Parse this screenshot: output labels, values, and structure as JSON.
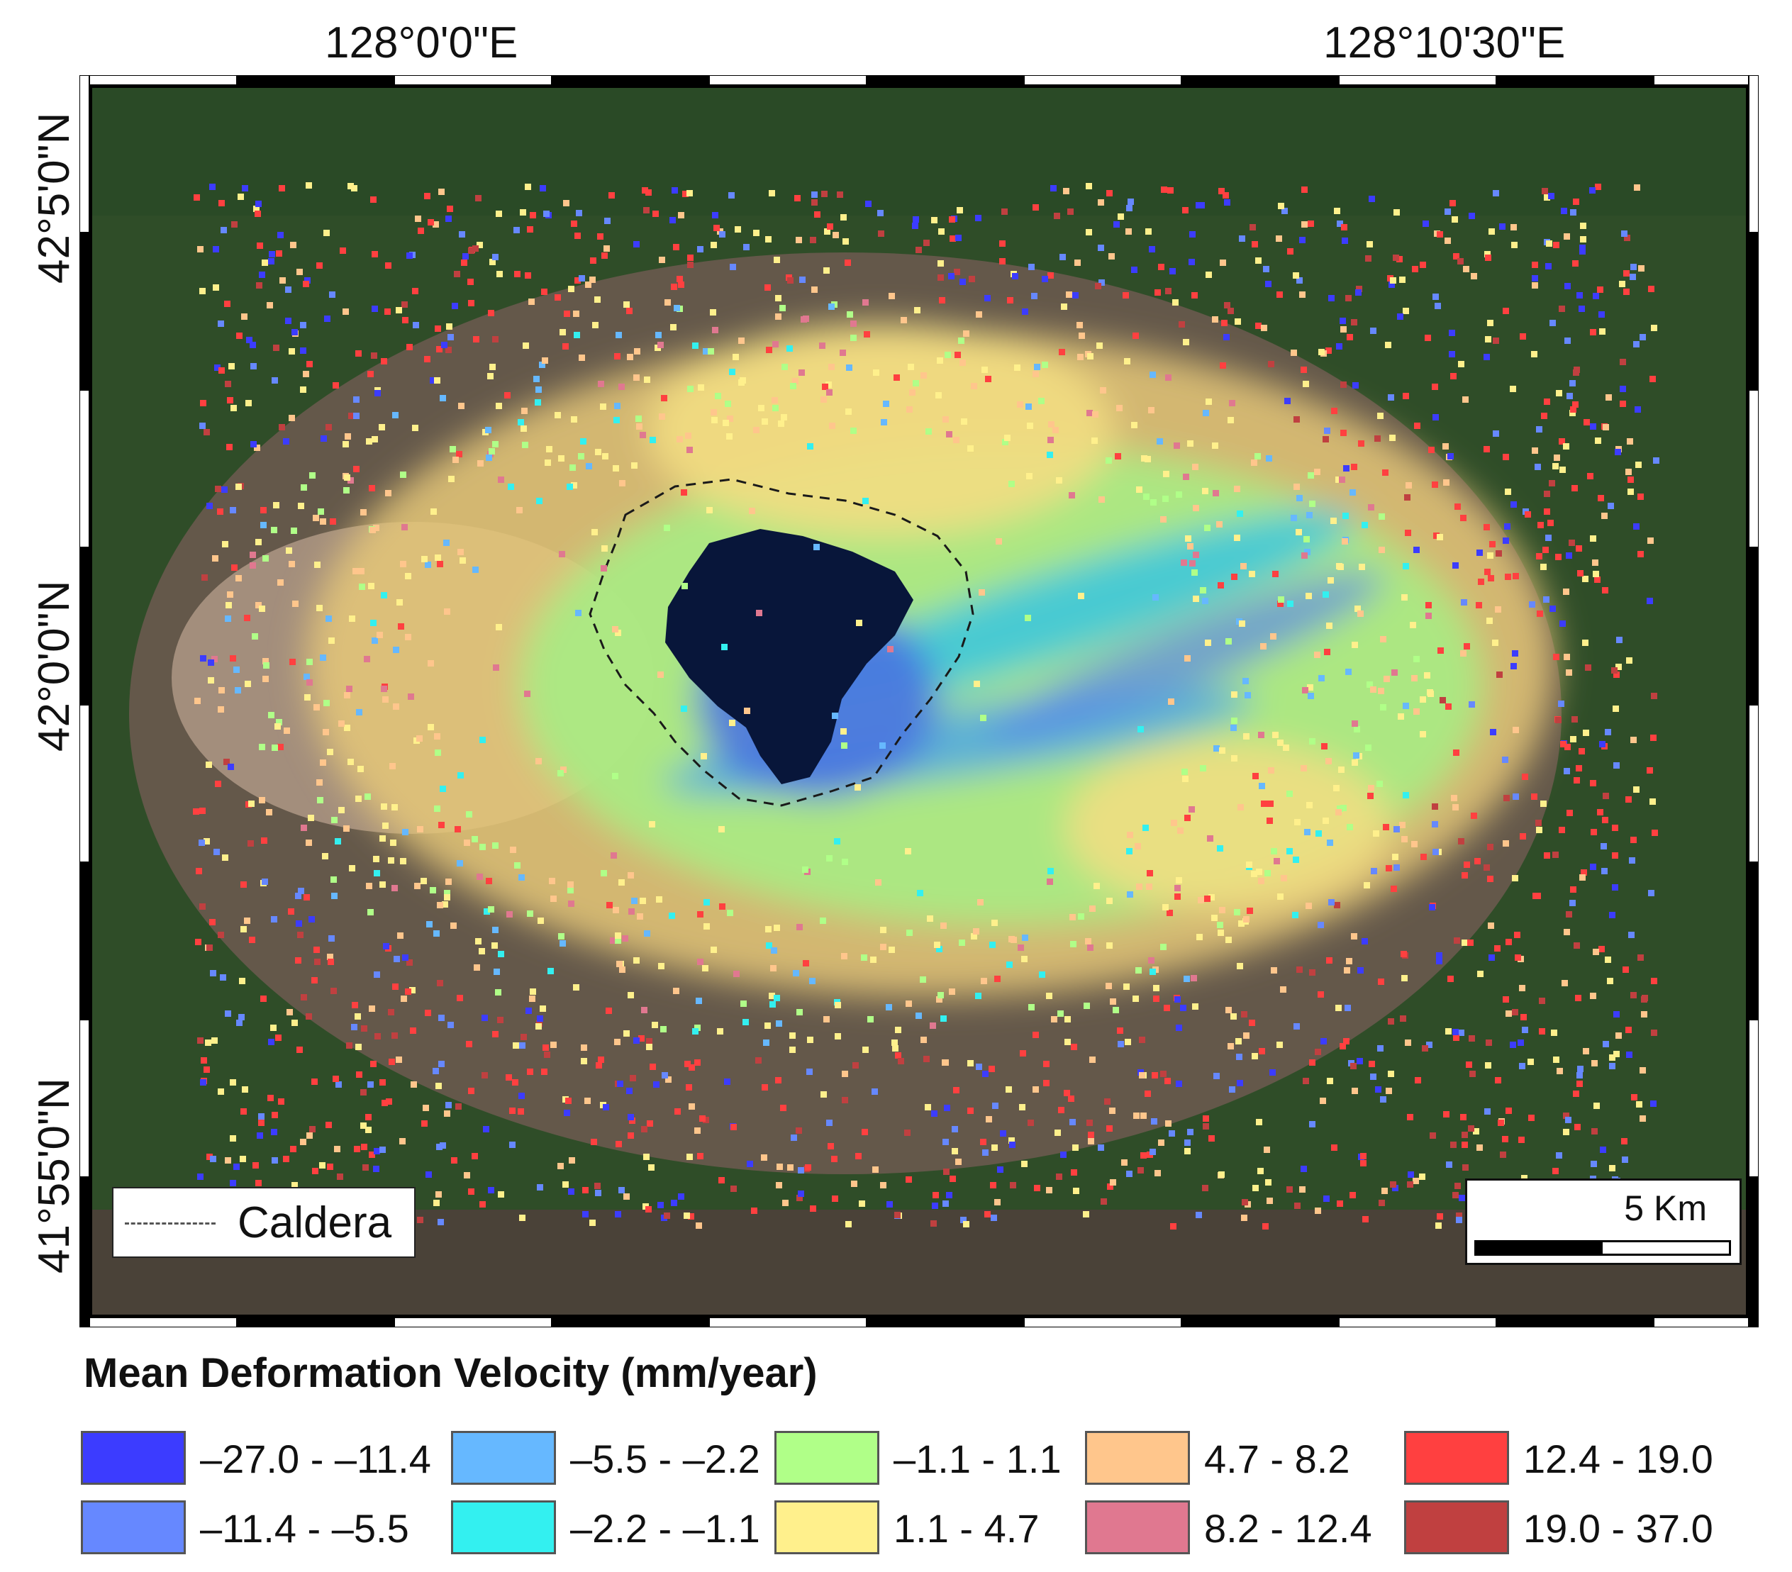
{
  "map": {
    "longitude_labels": [
      "128°0'0\"E",
      "128°10'30\"E"
    ],
    "latitude_labels": [
      "42°5'0\"N",
      "42°0'0\"N",
      "41°55'0\"N"
    ]
  },
  "caldera_legend": {
    "label": "Caldera"
  },
  "scale_bar": {
    "label": "5 Km"
  },
  "legend": {
    "title": "Mean Deformation Velocity (mm/year)",
    "classes": [
      {
        "label": "–27.0 - –11.4",
        "color": "#3c3cff"
      },
      {
        "label": "–11.4 - –5.5",
        "color": "#6688ff"
      },
      {
        "label": "–5.5 - –2.2",
        "color": "#66b8ff"
      },
      {
        "label": "–2.2 - –1.1",
        "color": "#33f0f0"
      },
      {
        "label": "–1.1 - 1.1",
        "color": "#b0ff88"
      },
      {
        "label": "1.1 - 4.7",
        "color": "#fff08c"
      },
      {
        "label": "4.7 - 8.2",
        "color": "#ffc68c"
      },
      {
        "label": "8.2 - 12.4",
        "color": "#e07890"
      },
      {
        "label": "12.4 - 19.0",
        "color": "#ff4040"
      },
      {
        "label": "19.0 - 37.0",
        "color": "#c04040"
      }
    ]
  }
}
